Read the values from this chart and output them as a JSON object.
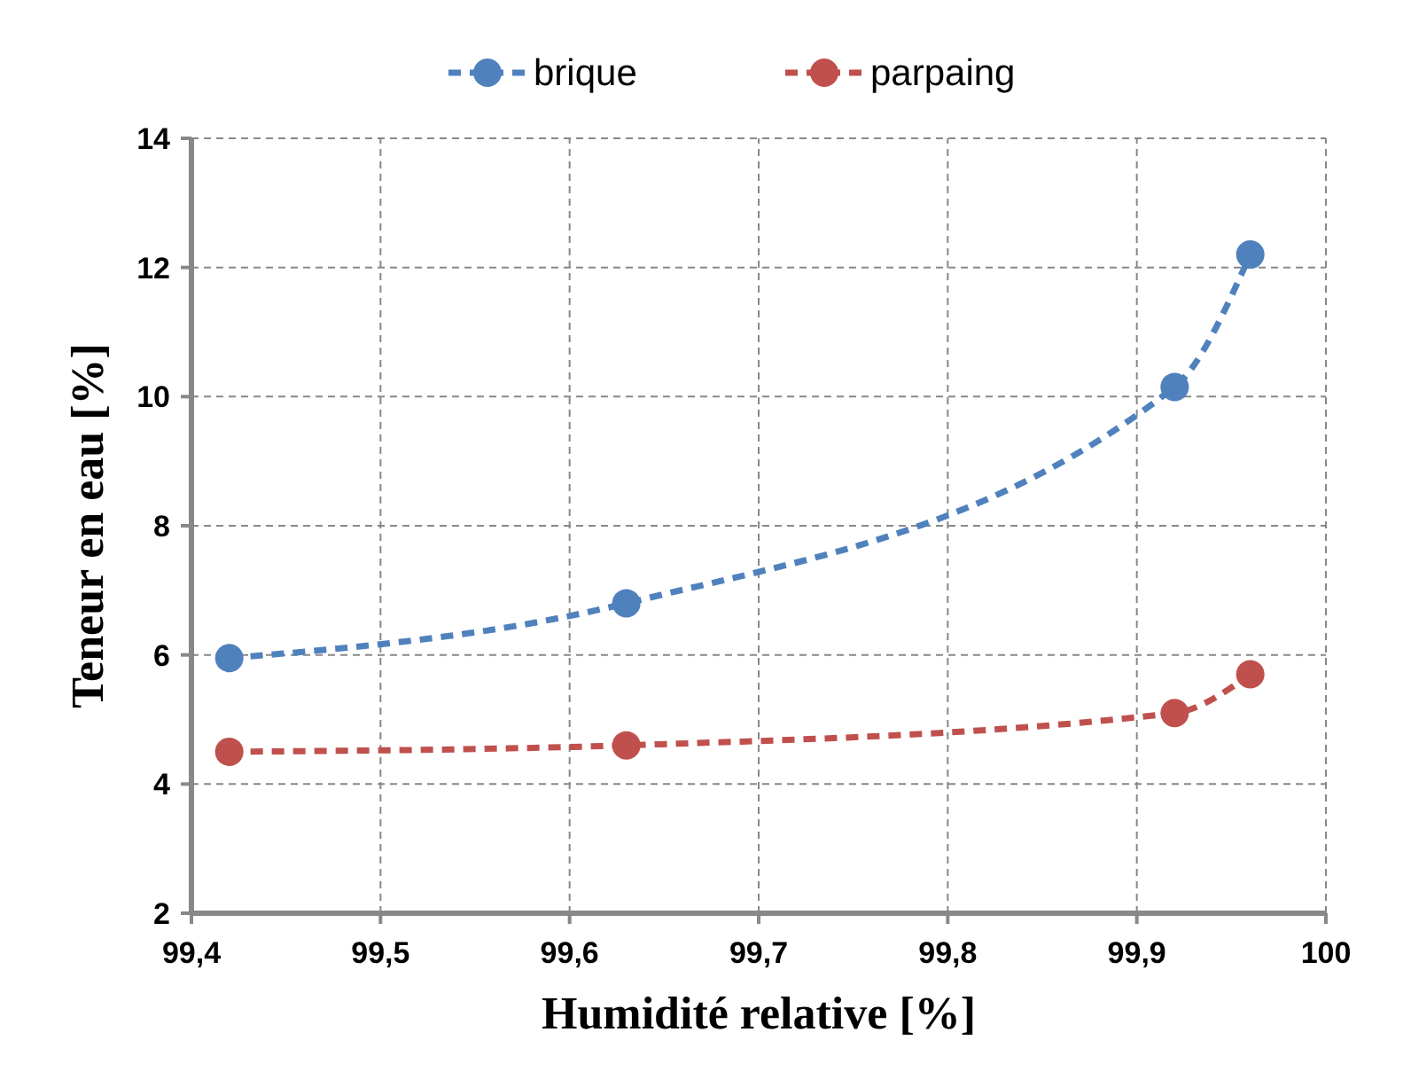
{
  "chart_data": {
    "type": "line",
    "xlabel": "Humidité relative [%]",
    "ylabel": "Teneur en eau [%]",
    "x": [
      99.42,
      99.63,
      99.92,
      99.96
    ],
    "series": [
      {
        "name": "brique",
        "color": "#4f81bd",
        "values": [
          5.95,
          6.8,
          10.15,
          12.2
        ]
      },
      {
        "name": "parpaing",
        "color": "#c0504d",
        "values": [
          4.5,
          4.6,
          5.1,
          5.7
        ]
      }
    ],
    "xlim": [
      99.4,
      100
    ],
    "xticks": [
      {
        "value": 99.4,
        "label": "99,4"
      },
      {
        "value": 99.5,
        "label": "99,5"
      },
      {
        "value": 99.6,
        "label": "99,6"
      },
      {
        "value": 99.7,
        "label": "99,7"
      },
      {
        "value": 99.8,
        "label": "99,8"
      },
      {
        "value": 99.9,
        "label": "99,9"
      },
      100
    ],
    "ylim": [
      2,
      14
    ],
    "yticks": [
      2,
      4,
      6,
      8,
      10,
      12,
      14
    ],
    "grid": true,
    "legend": "top",
    "marker": "circle",
    "line_style": "dashed"
  }
}
